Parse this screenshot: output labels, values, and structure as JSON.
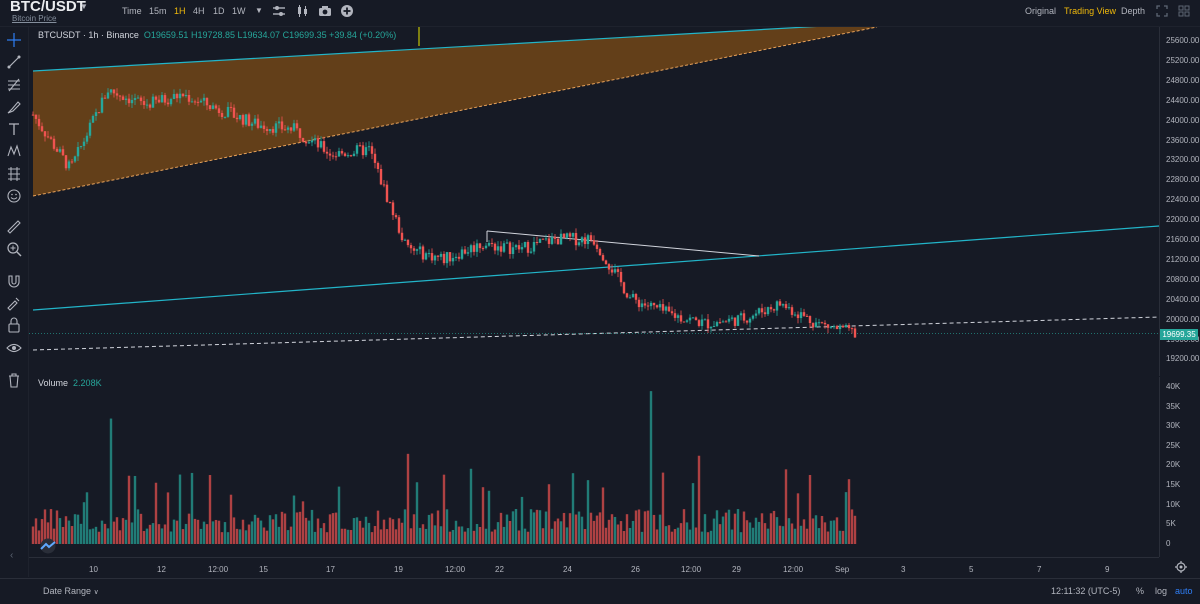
{
  "header": {
    "symbol": "BTC/USDT",
    "symbol_sub": "Bitcoin Price",
    "intervals": [
      "Time",
      "15m",
      "1H",
      "4H",
      "1D",
      "1W"
    ],
    "active_interval": "1H",
    "views": [
      "Original",
      "Trading View",
      "Depth"
    ],
    "active_view": "Trading View"
  },
  "legend": {
    "title": "BTCUSDT · 1h · Binance",
    "open": "O19659.51",
    "high": "H19728.85",
    "low": "L19634.07",
    "close": "C19699.35",
    "change": "+39.84 (+0.20%)"
  },
  "volume_legend": {
    "label": "Volume",
    "value": "2.208K"
  },
  "price_axis": [
    "25600.00",
    "25200.00",
    "24800.00",
    "24400.00",
    "24000.00",
    "23600.00",
    "23200.00",
    "22800.00",
    "22400.00",
    "22000.00",
    "21600.00",
    "21200.00",
    "20800.00",
    "20400.00",
    "20000.00",
    "19600.00",
    "19200.00"
  ],
  "current_price": "19699.35",
  "volume_axis": [
    "40K",
    "35K",
    "30K",
    "25K",
    "20K",
    "15K",
    "10K",
    "5K",
    "0"
  ],
  "time_axis": [
    "10",
    "12",
    "12:00",
    "15",
    "17",
    "19",
    "12:00",
    "22",
    "24",
    "26",
    "12:00",
    "29",
    "12:00",
    "Sep",
    "3",
    "5",
    "7",
    "9"
  ],
  "footer": {
    "date_range": "Date Range",
    "time": "12:11:32 (UTC-5)",
    "pct": "%",
    "log": "log",
    "auto": "auto"
  },
  "colors": {
    "background": "#161a25",
    "up": "#26a69a",
    "down": "#ef5350",
    "accent": "#f0b90b",
    "wedge_fill": "#7a4a16",
    "trendline": "#22b5c9"
  },
  "chart_data": {
    "type": "candlestick",
    "symbol": "BTCUSDT",
    "interval": "1h",
    "exchange": "Binance",
    "y_range": [
      19000,
      25800
    ],
    "volume_range": [
      0,
      40000
    ],
    "x_ticks": [
      "10",
      "12",
      "12:00",
      "15",
      "17",
      "19",
      "12:00",
      "22",
      "24",
      "26",
      "12:00",
      "29",
      "12:00",
      "Sep",
      "3",
      "5",
      "7",
      "9"
    ],
    "close_path": [
      {
        "x": "Aug 9",
        "y": 24100
      },
      {
        "x": "Aug 10",
        "y": 23000
      },
      {
        "x": "Aug 11",
        "y": 24600
      },
      {
        "x": "Aug 12",
        "y": 24300
      },
      {
        "x": "Aug 14",
        "y": 24500
      },
      {
        "x": "Aug 15",
        "y": 24200
      },
      {
        "x": "Aug 16",
        "y": 23900
      },
      {
        "x": "Aug 17",
        "y": 23800
      },
      {
        "x": "Aug 17",
        "y": 23300
      },
      {
        "x": "Aug 18",
        "y": 23400
      },
      {
        "x": "Aug 19",
        "y": 21400
      },
      {
        "x": "Aug 20",
        "y": 21200
      },
      {
        "x": "Aug 21",
        "y": 21500
      },
      {
        "x": "Aug 23",
        "y": 21400
      },
      {
        "x": "Aug 24",
        "y": 21600
      },
      {
        "x": "Aug 26",
        "y": 21600
      },
      {
        "x": "Aug 26",
        "y": 20400
      },
      {
        "x": "Aug 27",
        "y": 20100
      },
      {
        "x": "Aug 28",
        "y": 19900
      },
      {
        "x": "Aug 29",
        "y": 20000
      },
      {
        "x": "Aug 30",
        "y": 20300
      },
      {
        "x": "Aug 31",
        "y": 19900
      },
      {
        "x": "Sep 1",
        "y": 19700
      }
    ],
    "last": {
      "open": 19659.51,
      "high": 19728.85,
      "low": 19634.07,
      "close": 19699.35,
      "change": 39.84,
      "change_pct": 0.2
    }
  }
}
